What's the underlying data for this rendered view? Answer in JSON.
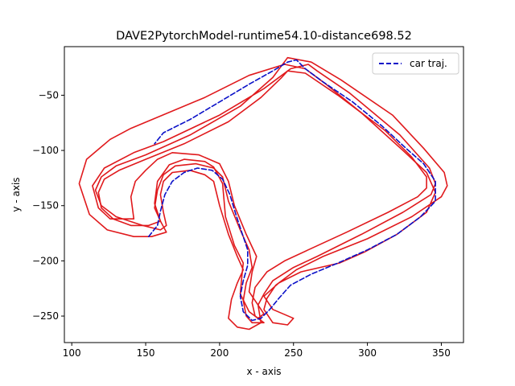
{
  "chart_data": {
    "type": "line",
    "title": "DAVE2PytorchModel-runtime54.10-distance698.52",
    "xlabel": "x - axis",
    "ylabel": "y - axis",
    "xlim": [
      95,
      365
    ],
    "ylim": [
      -274,
      -6
    ],
    "xticks": [
      100,
      150,
      200,
      250,
      300,
      350
    ],
    "yticks": [
      -50,
      -100,
      -150,
      -200,
      -250
    ],
    "legend": {
      "position": "top-right",
      "entries": [
        "car traj."
      ]
    },
    "colors": {
      "road": "#e0191c",
      "trajectory": "#0a10c8"
    },
    "series": [
      {
        "name": "",
        "style": "solid",
        "color": "#e0191c",
        "points": [
          [
            246,
            -16
          ],
          [
            262,
            -20
          ],
          [
            282,
            -36
          ],
          [
            317,
            -68
          ],
          [
            338,
            -98
          ],
          [
            352,
            -120
          ],
          [
            354,
            -132
          ],
          [
            350,
            -142
          ],
          [
            330,
            -160
          ],
          [
            300,
            -180
          ],
          [
            270,
            -196
          ],
          [
            252,
            -208
          ],
          [
            238,
            -222
          ],
          [
            232,
            -234
          ],
          [
            230,
            -244
          ],
          [
            236,
            -256
          ],
          [
            246,
            -258
          ],
          [
            250,
            -252
          ],
          [
            236,
            -244
          ],
          [
            230,
            -232
          ],
          [
            240,
            -220
          ],
          [
            255,
            -210
          ],
          [
            281,
            -202
          ],
          [
            298,
            -192
          ],
          [
            320,
            -176
          ],
          [
            340,
            -156
          ],
          [
            346,
            -138
          ],
          [
            340,
            -120
          ],
          [
            324,
            -100
          ],
          [
            296,
            -66
          ],
          [
            272,
            -40
          ],
          [
            258,
            -26
          ],
          [
            244,
            -22
          ],
          [
            220,
            -32
          ],
          [
            190,
            -52
          ],
          [
            140,
            -80
          ],
          [
            126,
            -90
          ],
          [
            110,
            -108
          ],
          [
            105,
            -130
          ],
          [
            112,
            -158
          ],
          [
            124,
            -172
          ],
          [
            142,
            -178
          ],
          [
            154,
            -178
          ],
          [
            164,
            -174
          ],
          [
            160,
            -164
          ],
          [
            156,
            -148
          ],
          [
            158,
            -128
          ],
          [
            166,
            -113
          ],
          [
            176,
            -108
          ],
          [
            190,
            -110
          ],
          [
            196,
            -115
          ],
          [
            202,
            -130
          ],
          [
            204,
            -160
          ],
          [
            210,
            -186
          ],
          [
            216,
            -202
          ],
          [
            215,
            -215
          ],
          [
            214,
            -230
          ],
          [
            220,
            -246
          ],
          [
            226,
            -252
          ],
          [
            230,
            -248
          ],
          [
            226,
            -240
          ],
          [
            220,
            -228
          ],
          [
            222,
            -210
          ],
          [
            225,
            -196
          ],
          [
            218,
            -176
          ],
          [
            210,
            -150
          ],
          [
            206,
            -128
          ],
          [
            200,
            -112
          ],
          [
            186,
            -104
          ],
          [
            168,
            -102
          ],
          [
            158,
            -108
          ],
          [
            150,
            -118
          ],
          [
            143,
            -128
          ],
          [
            140,
            -142
          ],
          [
            142,
            -162
          ],
          [
            126,
            -162
          ],
          [
            118,
            -152
          ],
          [
            114,
            -132
          ],
          [
            122,
            -116
          ],
          [
            142,
            -102
          ],
          [
            162,
            -92
          ],
          [
            200,
            -68
          ],
          [
            230,
            -44
          ],
          [
            248,
            -26
          ],
          [
            260,
            -22
          ],
          [
            266,
            -28
          ],
          [
            288,
            -48
          ],
          [
            322,
            -86
          ],
          [
            342,
            -116
          ],
          [
            346,
            -130
          ],
          [
            343,
            -140
          ],
          [
            324,
            -156
          ],
          [
            296,
            -176
          ],
          [
            266,
            -196
          ],
          [
            250,
            -206
          ],
          [
            236,
            -218
          ],
          [
            230,
            -230
          ],
          [
            226,
            -240
          ],
          [
            228,
            -256
          ],
          [
            220,
            -262
          ],
          [
            212,
            -260
          ],
          [
            206,
            -252
          ],
          [
            208,
            -235
          ],
          [
            212,
            -220
          ],
          [
            216,
            -208
          ],
          [
            212,
            -196
          ],
          [
            206,
            -176
          ],
          [
            200,
            -150
          ],
          [
            196,
            -128
          ],
          [
            190,
            -122
          ],
          [
            180,
            -118
          ],
          [
            168,
            -120
          ],
          [
            162,
            -128
          ],
          [
            160,
            -140
          ],
          [
            162,
            -156
          ],
          [
            164,
            -168
          ],
          [
            160,
            -172
          ],
          [
            148,
            -168
          ],
          [
            130,
            -160
          ],
          [
            120,
            -150
          ],
          [
            116,
            -136
          ],
          [
            120,
            -124
          ],
          [
            130,
            -114
          ],
          [
            150,
            -104
          ],
          [
            180,
            -86
          ],
          [
            214,
            -60
          ],
          [
            236,
            -34
          ],
          [
            246,
            -16
          ]
        ]
      },
      {
        "name": "",
        "style": "solid",
        "color": "#e0191c",
        "points": [
          [
            246,
            -28
          ],
          [
            258,
            -30
          ],
          [
            280,
            -50
          ],
          [
            312,
            -82
          ],
          [
            330,
            -106
          ],
          [
            340,
            -124
          ],
          [
            340,
            -134
          ],
          [
            334,
            -142
          ],
          [
            314,
            -156
          ],
          [
            286,
            -174
          ],
          [
            260,
            -190
          ],
          [
            244,
            -200
          ],
          [
            232,
            -210
          ],
          [
            224,
            -224
          ],
          [
            222,
            -238
          ],
          [
            224,
            -250
          ],
          [
            230,
            -256
          ],
          [
            222,
            -256
          ],
          [
            218,
            -250
          ],
          [
            216,
            -236
          ],
          [
            218,
            -220
          ],
          [
            222,
            -206
          ],
          [
            220,
            -190
          ],
          [
            214,
            -172
          ],
          [
            206,
            -146
          ],
          [
            202,
            -124
          ],
          [
            196,
            -116
          ],
          [
            184,
            -112
          ],
          [
            170,
            -114
          ],
          [
            162,
            -122
          ],
          [
            158,
            -136
          ],
          [
            156,
            -152
          ],
          [
            160,
            -164
          ],
          [
            152,
            -168
          ],
          [
            140,
            -168
          ],
          [
            128,
            -162
          ],
          [
            120,
            -152
          ],
          [
            118,
            -138
          ],
          [
            122,
            -126
          ],
          [
            132,
            -118
          ],
          [
            150,
            -108
          ],
          [
            176,
            -94
          ],
          [
            206,
            -74
          ],
          [
            228,
            -52
          ],
          [
            242,
            -34
          ],
          [
            246,
            -28
          ]
        ]
      },
      {
        "name": "car traj.",
        "style": "dashed",
        "color": "#0a10c8",
        "points": [
          [
            152,
            -178
          ],
          [
            158,
            -168
          ],
          [
            160,
            -155
          ],
          [
            163,
            -140
          ],
          [
            168,
            -128
          ],
          [
            176,
            -120
          ],
          [
            185,
            -116
          ],
          [
            195,
            -118
          ],
          [
            202,
            -126
          ],
          [
            207,
            -140
          ],
          [
            211,
            -158
          ],
          [
            215,
            -174
          ],
          [
            219,
            -190
          ],
          [
            219,
            -204
          ],
          [
            216,
            -218
          ],
          [
            214,
            -232
          ],
          [
            216,
            -246
          ],
          [
            222,
            -254
          ],
          [
            228,
            -252
          ],
          [
            234,
            -244
          ],
          [
            240,
            -234
          ],
          [
            248,
            -222
          ],
          [
            262,
            -212
          ],
          [
            280,
            -202
          ],
          [
            300,
            -190
          ],
          [
            320,
            -176
          ],
          [
            336,
            -160
          ],
          [
            346,
            -146
          ],
          [
            346,
            -128
          ],
          [
            338,
            -112
          ],
          [
            326,
            -98
          ],
          [
            310,
            -78
          ],
          [
            290,
            -56
          ],
          [
            270,
            -38
          ],
          [
            258,
            -26
          ],
          [
            252,
            -18
          ],
          [
            246,
            -20
          ],
          [
            236,
            -28
          ],
          [
            220,
            -40
          ],
          [
            200,
            -56
          ],
          [
            180,
            -72
          ],
          [
            162,
            -84
          ],
          [
            156,
            -94
          ]
        ]
      }
    ]
  }
}
